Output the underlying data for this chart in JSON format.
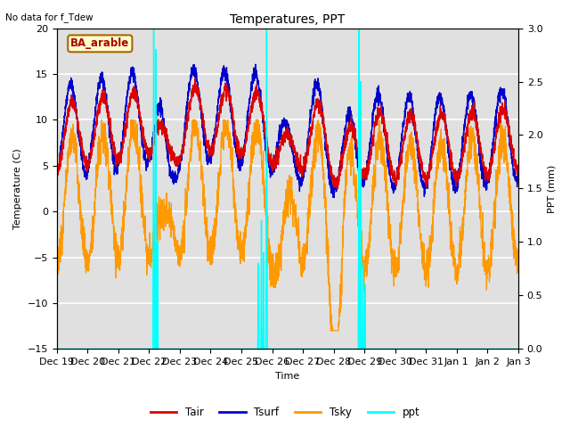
{
  "title": "Temperatures, PPT",
  "top_left_text": "No data for f_Tdew",
  "box_label": "BA_arable",
  "xlabel": "Time",
  "ylabel_left": "Temperature (C)",
  "ylabel_right": "PPT (mm)",
  "ylim_left": [
    -15,
    20
  ],
  "ylim_right": [
    0.0,
    3.0
  ],
  "background_color": "#ffffff",
  "plot_bg_color": "#e0e0e0",
  "grid_color": "#ffffff",
  "colors": {
    "Tair": "#dd0000",
    "Tsurf": "#0000cc",
    "Tsky": "#ff9900",
    "ppt": "#00ffff"
  },
  "x_tick_labels": [
    "Dec 19",
    "Dec 20",
    "Dec 21",
    "Dec 22",
    "Dec 23",
    "Dec 24",
    "Dec 25",
    "Dec 26",
    "Dec 27",
    "Dec 28",
    "Dec 29",
    "Dec 30",
    "Dec 31",
    "Jan 1",
    "Jan 2",
    "Jan 3"
  ],
  "yticks_left": [
    -15,
    -10,
    -5,
    0,
    5,
    10,
    15,
    20
  ],
  "yticks_right": [
    0.0,
    0.5,
    1.0,
    1.5,
    2.0,
    2.5,
    3.0
  ],
  "figsize": [
    6.4,
    4.8
  ],
  "dpi": 100
}
